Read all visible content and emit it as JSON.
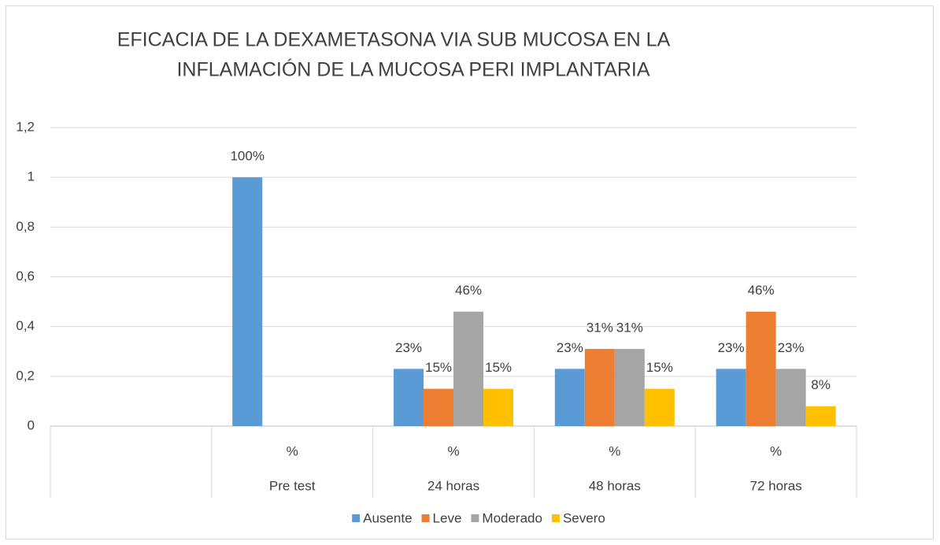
{
  "chart_data": {
    "type": "bar",
    "title": [
      "EFICACIA DE LA DEXAMETASONA VIA SUB MUCOSA EN LA",
      "INFLAMACIÓN DE LA MUCOSA PERI IMPLANTARIA"
    ],
    "categories": [
      null,
      "Pre test",
      "24 horas",
      "48 horas",
      "72 horas"
    ],
    "subcategories": [
      null,
      "%",
      "%",
      "%",
      "%"
    ],
    "series": [
      {
        "name": "Ausente",
        "color": "#5b9bd5",
        "values": [
          null,
          1,
          0.23,
          0.23,
          0.23
        ],
        "value_labels": [
          null,
          "100%",
          "23%",
          "23%",
          "23%"
        ]
      },
      {
        "name": "Leve",
        "color": "#ed7d31",
        "values": [
          null,
          null,
          0.15,
          0.31,
          0.46
        ],
        "value_labels": [
          null,
          null,
          "15%",
          "31%",
          "46%"
        ]
      },
      {
        "name": "Moderado",
        "color": "#a5a5a5",
        "values": [
          null,
          null,
          0.46,
          0.31,
          0.23
        ],
        "value_labels": [
          null,
          null,
          "46%",
          "31%",
          "23%"
        ]
      },
      {
        "name": "Severo",
        "color": "#ffc000",
        "values": [
          null,
          null,
          0.15,
          0.15,
          0.08
        ],
        "value_labels": [
          null,
          null,
          "15%",
          "15%",
          "8%"
        ]
      }
    ],
    "ylim": [
      0,
      1.2
    ],
    "yticks": [
      0,
      {
        "value": 0.2,
        "label": "0,2"
      },
      {
        "value": 0.4,
        "label": "0,4"
      },
      {
        "value": 0.6,
        "label": "0,6"
      },
      {
        "value": 0.8,
        "label": "0,8"
      },
      1,
      {
        "value": 1.2,
        "label": "1,2"
      }
    ],
    "grid": true,
    "legend": "bottom"
  }
}
